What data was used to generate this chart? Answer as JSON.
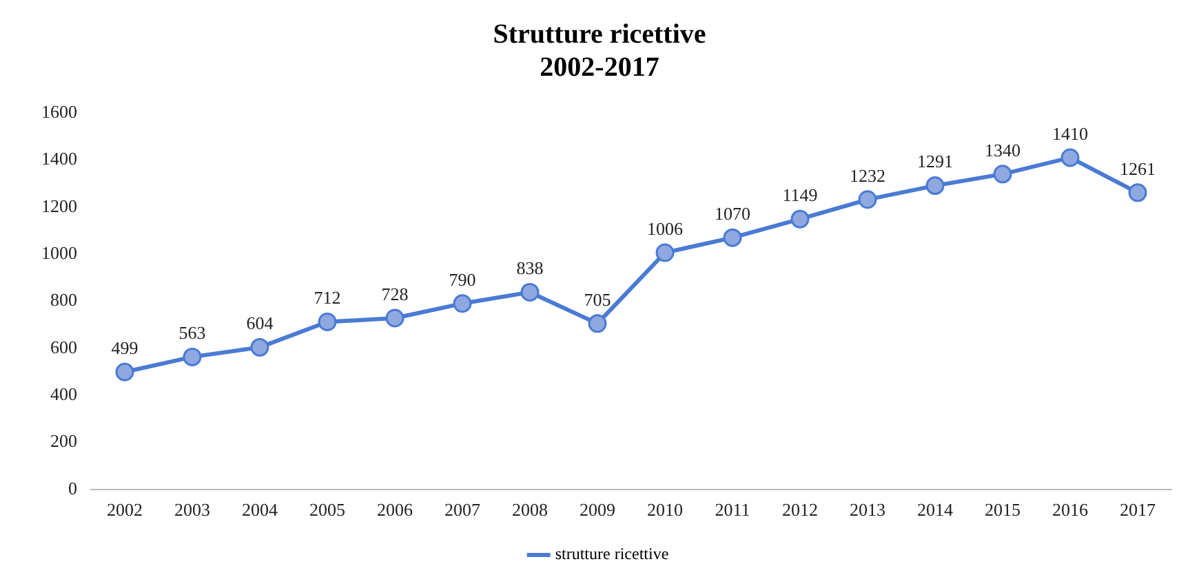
{
  "chart_data": {
    "type": "line",
    "title": "Strutture ricettive",
    "subtitle": "2002-2017",
    "categories": [
      "2002",
      "2003",
      "2004",
      "2005",
      "2006",
      "2007",
      "2008",
      "2009",
      "2010",
      "2011",
      "2012",
      "2013",
      "2014",
      "2015",
      "2016",
      "2017"
    ],
    "series": [
      {
        "name": "strutture ricettive",
        "color": "#4a7bd4",
        "values": [
          499,
          563,
          604,
          712,
          728,
          790,
          838,
          705,
          1006,
          1070,
          1149,
          1232,
          1291,
          1340,
          1410,
          1261
        ]
      }
    ],
    "ylim": [
      0,
      1600
    ],
    "yticks": [
      0,
      200,
      400,
      600,
      800,
      1000,
      1200,
      1400,
      1600
    ],
    "grid": false,
    "legend": "bottom",
    "marker": "circle",
    "line_style": "solid",
    "data_labels": true
  }
}
